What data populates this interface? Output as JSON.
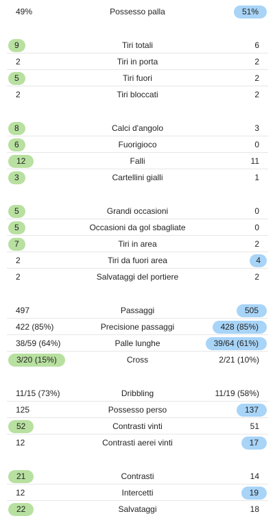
{
  "stats": [
    {
      "label": "Possesso palla",
      "home": "49%",
      "away": "51%",
      "highlight": "away"
    },
    {
      "label": "Tiri totali",
      "home": "9",
      "away": "6",
      "highlight": "home"
    },
    {
      "label": "Tiri in porta",
      "home": "2",
      "away": "2",
      "highlight": ""
    },
    {
      "label": "Tiri fuori",
      "home": "5",
      "away": "2",
      "highlight": "home"
    },
    {
      "label": "Tiri bloccati",
      "home": "2",
      "away": "2",
      "highlight": ""
    },
    {
      "label": "Calci d'angolo",
      "home": "8",
      "away": "3",
      "highlight": "home"
    },
    {
      "label": "Fuorigioco",
      "home": "6",
      "away": "0",
      "highlight": "home"
    },
    {
      "label": "Falli",
      "home": "12",
      "away": "11",
      "highlight": "home"
    },
    {
      "label": "Cartellini gialli",
      "home": "3",
      "away": "1",
      "highlight": "home"
    },
    {
      "label": "Grandi occasioni",
      "home": "5",
      "away": "0",
      "highlight": "home"
    },
    {
      "label": "Occasioni da gol sbagliate",
      "home": "5",
      "away": "0",
      "highlight": "home"
    },
    {
      "label": "Tiri in area",
      "home": "7",
      "away": "2",
      "highlight": "home"
    },
    {
      "label": "Tiri da fuori area",
      "home": "2",
      "away": "4",
      "highlight": "away"
    },
    {
      "label": "Salvataggi del portiere",
      "home": "2",
      "away": "2",
      "highlight": ""
    },
    {
      "label": "Passaggi",
      "home": "497",
      "away": "505",
      "highlight": "away"
    },
    {
      "label": "Precisione passaggi",
      "home": "422 (85%)",
      "away": "428 (85%)",
      "highlight": "away"
    },
    {
      "label": "Palle lunghe",
      "home": "38/59 (64%)",
      "away": "39/64 (61%)",
      "highlight": "away"
    },
    {
      "label": "Cross",
      "home": "3/20 (15%)",
      "away": "2/21 (10%)",
      "highlight": "home"
    },
    {
      "label": "Dribbling",
      "home": "11/15 (73%)",
      "away": "11/19 (58%)",
      "highlight": ""
    },
    {
      "label": "Possesso perso",
      "home": "125",
      "away": "137",
      "highlight": "away"
    },
    {
      "label": "Contrasti vinti",
      "home": "52",
      "away": "51",
      "highlight": "home"
    },
    {
      "label": "Contrasti aerei vinti",
      "home": "12",
      "away": "17",
      "highlight": "away"
    },
    {
      "label": "Contrasti",
      "home": "21",
      "away": "14",
      "highlight": "home"
    },
    {
      "label": "Intercetti",
      "home": "12",
      "away": "19",
      "highlight": "away"
    },
    {
      "label": "Salvataggi",
      "home": "22",
      "away": "18",
      "highlight": "home"
    }
  ],
  "colors": {
    "home_highlight": "#b8e0a0",
    "away_highlight": "#a8d4f7"
  }
}
